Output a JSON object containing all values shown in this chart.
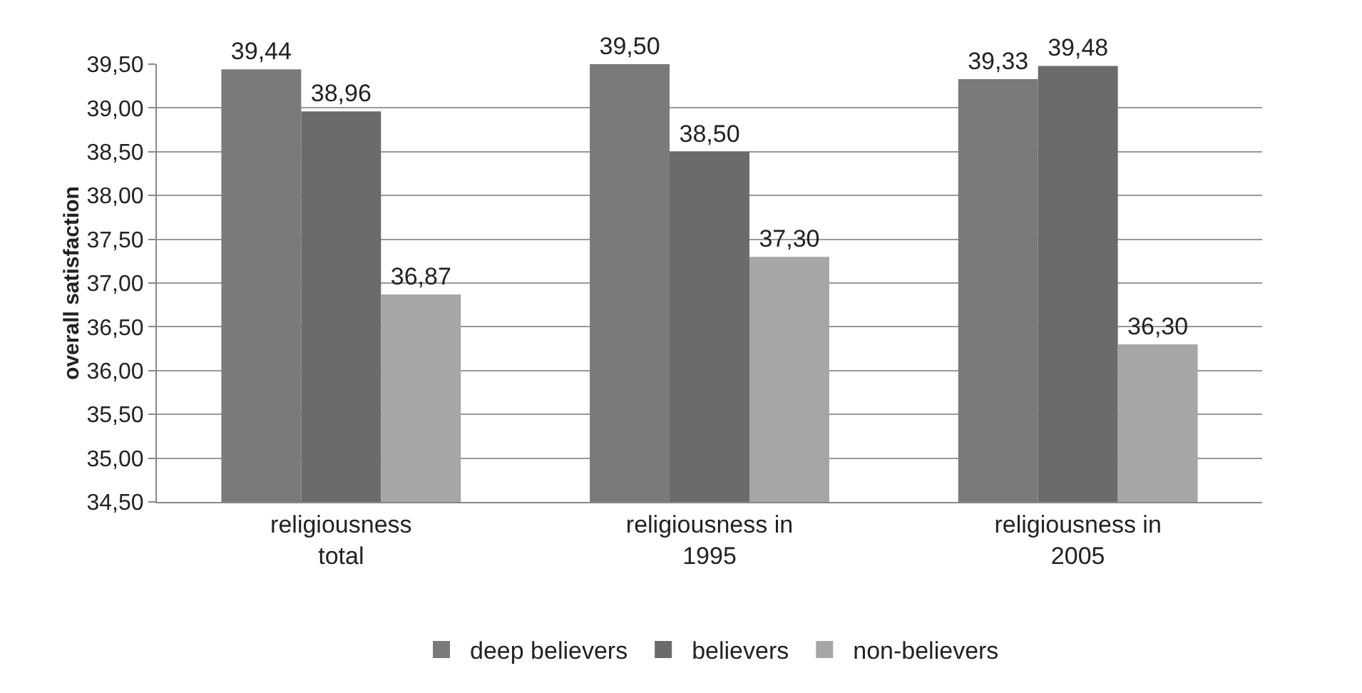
{
  "chart_data": {
    "type": "bar",
    "ylabel": "overall satisfaction",
    "categories": [
      "religiousness total",
      "religiousness in 1995",
      "religiousness in 2005"
    ],
    "series": [
      {
        "name": "deep believers",
        "color": "#7a7a7a",
        "values": [
          39.44,
          39.5,
          39.33
        ],
        "value_labels": [
          "39,44",
          "39,50",
          "39,33"
        ]
      },
      {
        "name": "believers",
        "color": "#6b6b6b",
        "values": [
          38.96,
          38.5,
          39.48
        ],
        "value_labels": [
          "38,96",
          "38,50",
          "39,48"
        ]
      },
      {
        "name": "non-believers",
        "color": "#a6a6a6",
        "values": [
          36.87,
          37.3,
          36.3
        ],
        "value_labels": [
          "36,87",
          "37,30",
          "36,30"
        ]
      }
    ],
    "ylim": [
      34.5,
      39.5
    ],
    "yticks": [
      {
        "value": 34.5,
        "label": "34,50"
      },
      {
        "value": 35,
        "label": "35,00"
      },
      {
        "value": 35.5,
        "label": "35,50"
      },
      {
        "value": 36,
        "label": "36,00"
      },
      {
        "value": 36.5,
        "label": "36,50"
      },
      {
        "value": 37,
        "label": "37,00"
      },
      {
        "value": 37.5,
        "label": "37,50"
      },
      {
        "value": 38,
        "label": "38,00"
      },
      {
        "value": 38.5,
        "label": "38,50"
      },
      {
        "value": 39,
        "label": "39,00"
      },
      {
        "value": 39.5,
        "label": "39,50"
      }
    ],
    "grid": "y",
    "legend": "bottom"
  }
}
